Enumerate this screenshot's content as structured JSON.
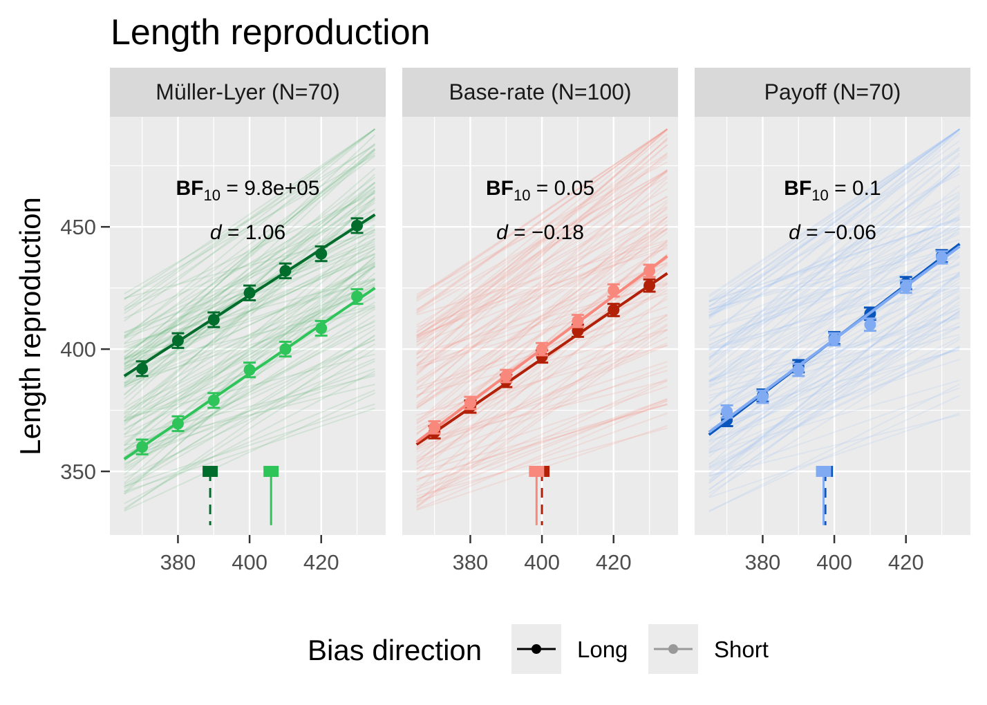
{
  "chart_data": {
    "type": "line",
    "title": "Length reproduction",
    "ylabel": "Length reproduction",
    "xlabel": "",
    "xlim": [
      361,
      438
    ],
    "ylim": [
      324,
      495
    ],
    "x_ticks": [
      "380",
      "400",
      "420"
    ],
    "y_ticks": [
      "350",
      "400",
      "450"
    ],
    "legend": {
      "title": "Bias direction",
      "position": "bottom",
      "entries": [
        {
          "label": "Long",
          "color": "#000000"
        },
        {
          "label": "Short",
          "color": "#999999"
        }
      ]
    },
    "x_levels": [
      370,
      380,
      390,
      400,
      410,
      420,
      430
    ],
    "panels": [
      {
        "strip": "Müller-Lyer (N=70)",
        "bf_label": "BF",
        "bf_sub": "10",
        "bf_value": " = 9.8e+05",
        "d_label": "d",
        "d_value": " = 1.06",
        "colors": {
          "long": "#006d2c",
          "short": "#2ec45a",
          "bg": "#41ab5d"
        },
        "series": [
          {
            "name": "Long",
            "means": [
              392,
              403.5,
              412,
              423,
              432,
              439,
              450.5
            ],
            "se": 3,
            "fit": {
              "x0": 365,
              "y0": 389,
              "x1": 435,
              "y1": 455
            },
            "bias_marker": {
              "x": 389,
              "y": 350,
              "style": "dashed"
            }
          },
          {
            "name": "Short",
            "means": [
              360,
              369.5,
              379,
              391.5,
              400,
              408.5,
              421.5
            ],
            "se": 3,
            "fit": {
              "x0": 365,
              "y0": 355,
              "x1": 435,
              "y1": 425
            },
            "bias_marker": {
              "x": 406,
              "y": 350,
              "style": "solid"
            }
          }
        ]
      },
      {
        "strip": "Base-rate (N=100)",
        "bf_label": "BF",
        "bf_sub": "10",
        "bf_value": " = 0.05",
        "d_label": "d",
        "d_value": " = −0.18",
        "colors": {
          "long": "#b32008",
          "short": "#f8877c",
          "bg": "#fb8072"
        },
        "series": [
          {
            "name": "Long",
            "means": [
              366,
              376.5,
              387,
              397,
              407.5,
              416,
              426
            ],
            "se": 2.5,
            "fit": {
              "x0": 365,
              "y0": 361,
              "x1": 435,
              "y1": 431
            },
            "bias_marker": {
              "x": 400,
              "y": 350,
              "style": "dashed"
            }
          },
          {
            "name": "Short",
            "means": [
              368,
              378,
              389,
              400,
              411.5,
              424,
              432
            ],
            "se": 2.5,
            "fit": {
              "x0": 365,
              "y0": 362,
              "x1": 435,
              "y1": 438
            },
            "bias_marker": {
              "x": 398.5,
              "y": 350,
              "style": "solid"
            }
          }
        ]
      },
      {
        "strip": "Payoff (N=70)",
        "bf_label": "BF",
        "bf_sub": "10",
        "bf_value": " = 0.1",
        "d_label": "d",
        "d_value": " = −0.06",
        "colors": {
          "long": "#0a55bb",
          "short": "#80aaf2",
          "bg": "#8fb8f5"
        },
        "series": [
          {
            "name": "Long",
            "means": [
              371,
              381,
              393,
              404.5,
              414.5,
              427,
              438
            ],
            "se": 2.5,
            "fit": {
              "x0": 365,
              "y0": 365,
              "x1": 435,
              "y1": 443
            },
            "bias_marker": {
              "x": 397.5,
              "y": 350,
              "style": "dashed"
            }
          },
          {
            "name": "Short",
            "means": [
              374.5,
              380.5,
              391.5,
              404,
              410,
              425.5,
              437.5
            ],
            "se": 2.5,
            "fit": {
              "x0": 365,
              "y0": 366,
              "x1": 435,
              "y1": 442
            },
            "bias_marker": {
              "x": 397,
              "y": 350,
              "style": "solid"
            }
          }
        ]
      }
    ]
  }
}
